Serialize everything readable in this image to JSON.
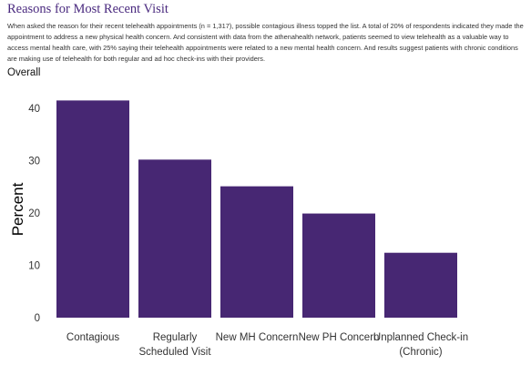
{
  "header": {
    "title": "Reasons for Most Recent Visit",
    "intro": "When asked the reason for their recent telehealth appointments (n = 1,317), possible contagious illness topped the list. A total of 20% of respondents indicated they made the appointment to address a new physical health concern. And consistent with data from the athenahealth network, patients seemed to view telehealth as a valuable way to access mental health care, with 25% saying their telehealth appointments were related to a new mental health concern. And results suggest patients with chronic conditions are making use of telehealth for both regular and ad hoc check-ins with their providers.",
    "subtitle": "Overall"
  },
  "colors": {
    "bar": "#472773",
    "title": "#4a2a7f"
  },
  "chart_data": {
    "type": "bar",
    "categories": [
      [
        "Contagious"
      ],
      [
        "Regularly",
        "Scheduled Visit"
      ],
      [
        "New MH Concern"
      ],
      [
        "New PH Concern"
      ],
      [
        "Unplanned Check-in",
        "(Chronic)"
      ]
    ],
    "values": [
      41.5,
      30.2,
      25.1,
      19.9,
      12.4
    ],
    "title": "",
    "xlabel": "",
    "ylabel": "Percent",
    "ylim": [
      0,
      43
    ],
    "yticks": [
      0,
      10,
      20,
      30,
      40
    ],
    "grid": false
  }
}
